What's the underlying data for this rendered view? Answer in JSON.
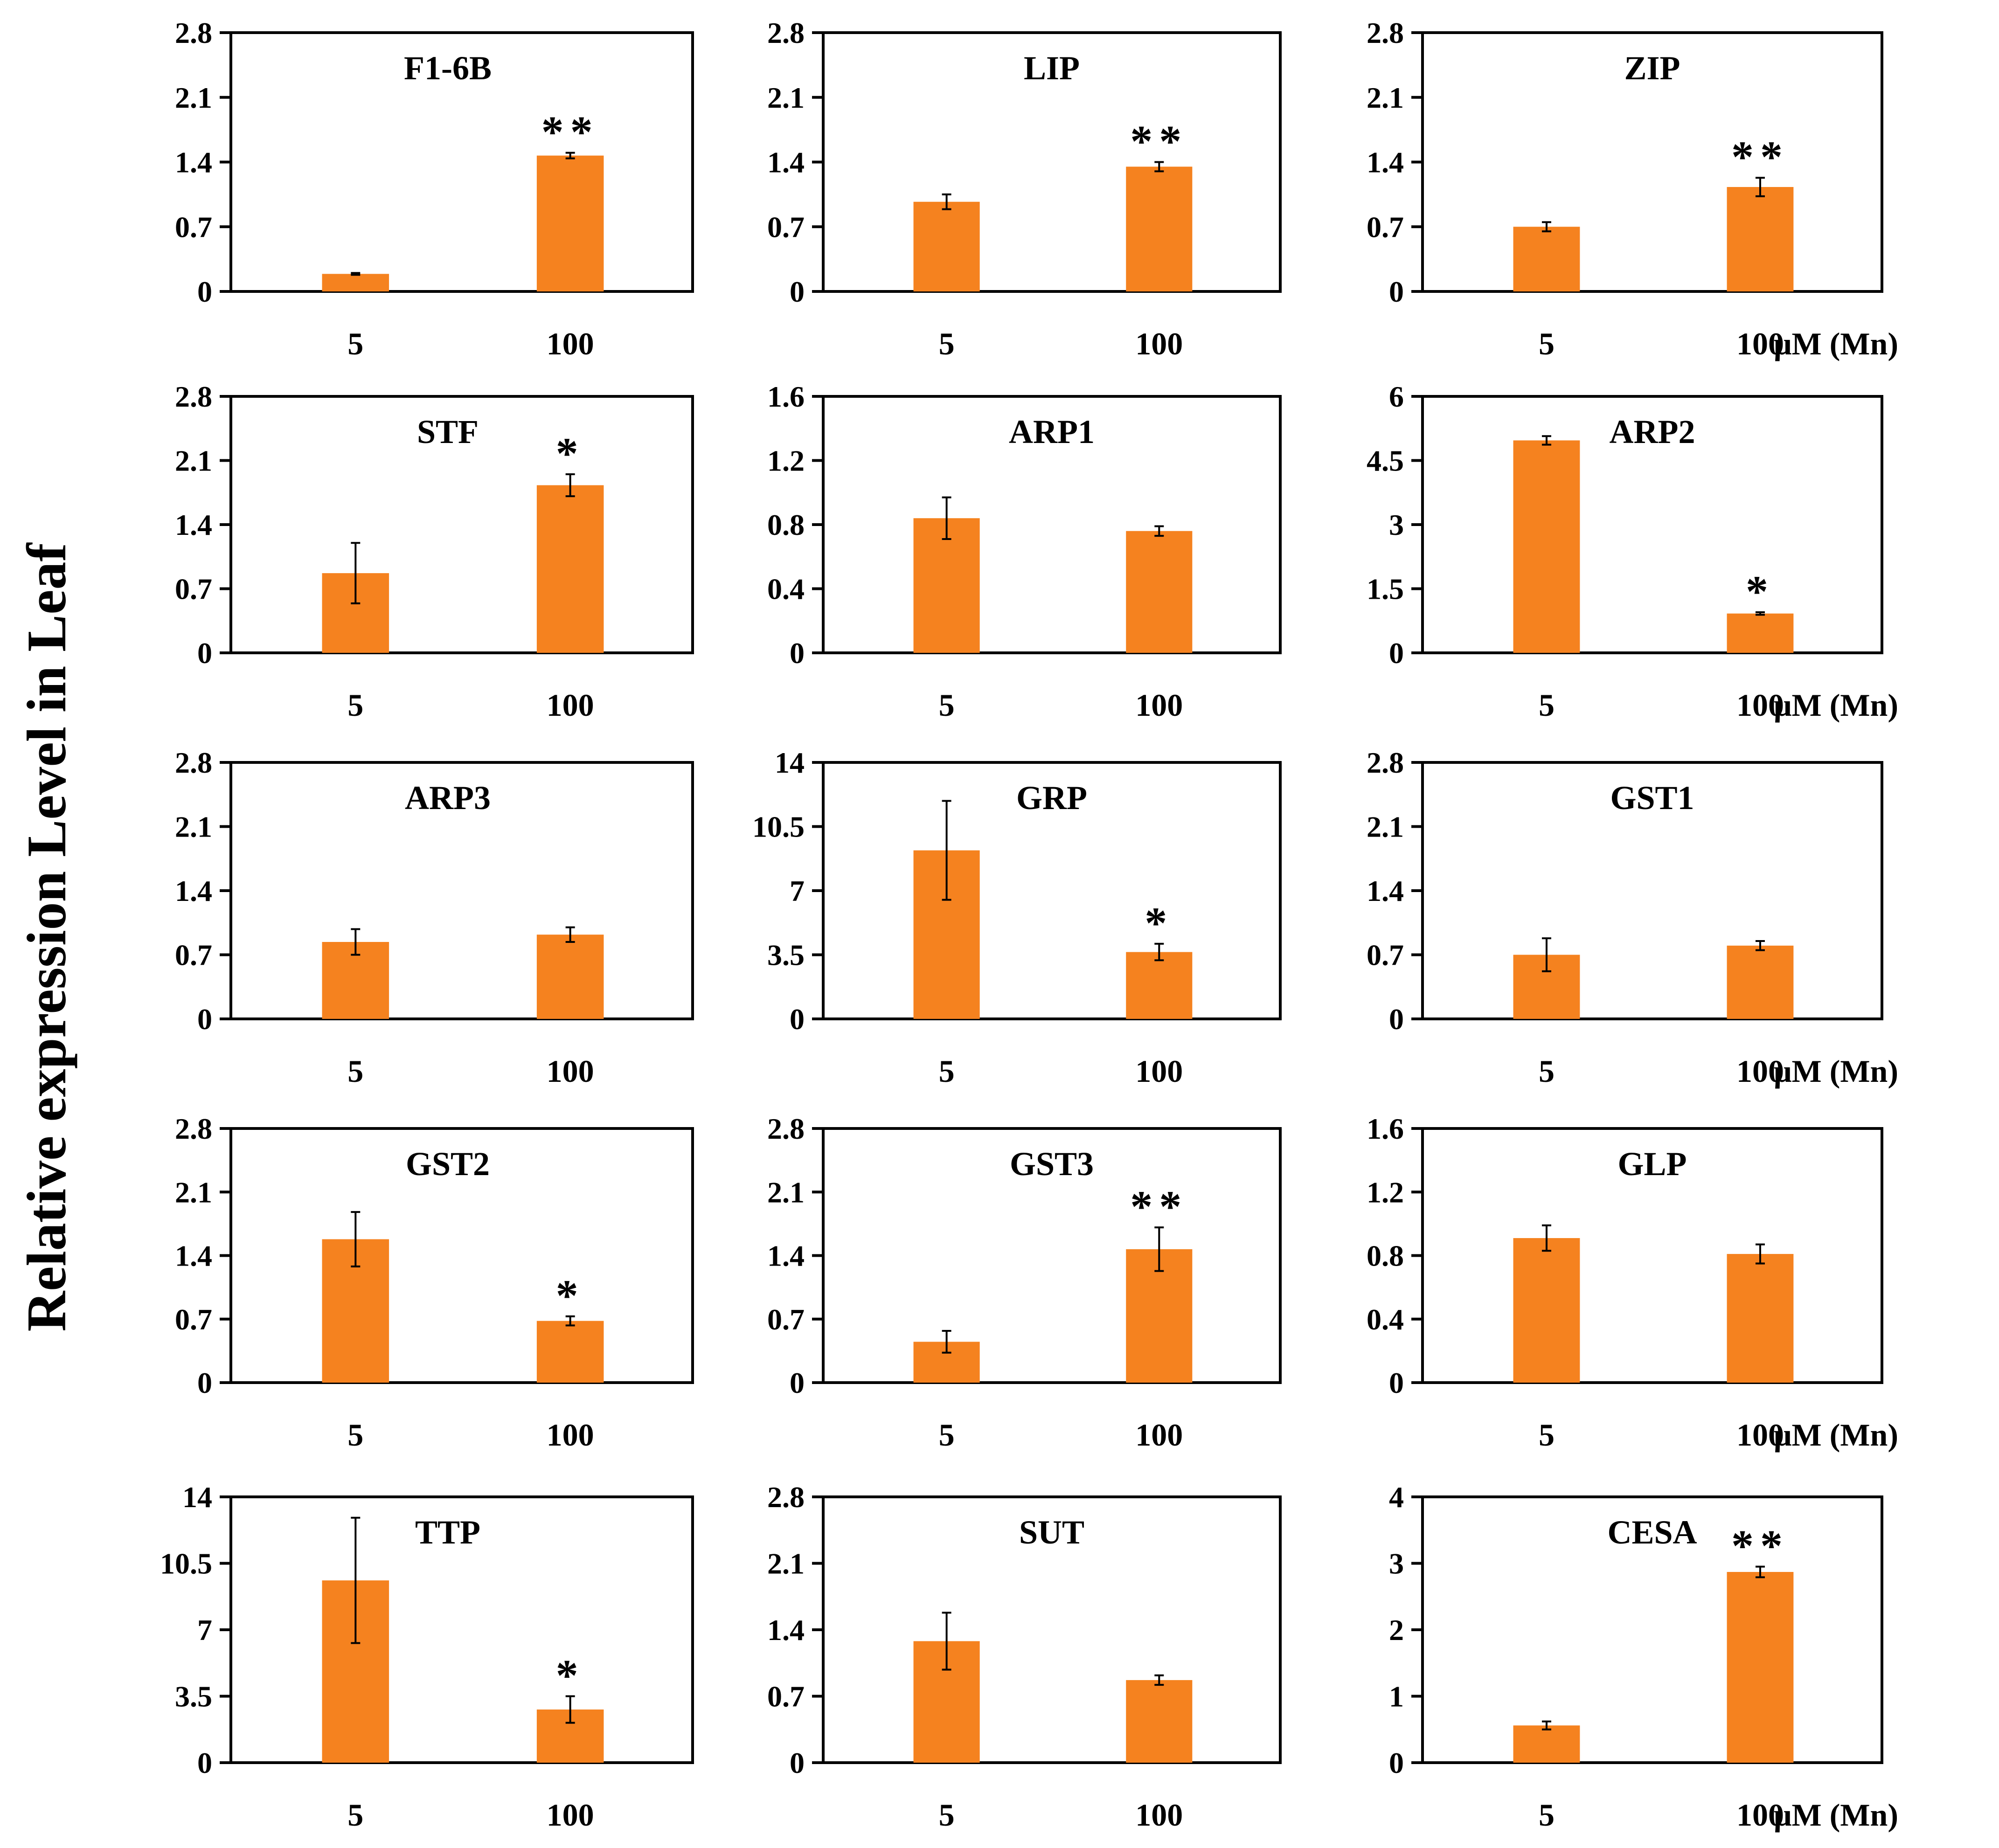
{
  "figure": {
    "ylabel": "Relative expression Level in Leaf",
    "unit_label": "μM (Mn)",
    "bar_color": "#f5821f",
    "axis_color": "#000000"
  },
  "chart_data": [
    {
      "type": "bar",
      "title": "F1-6B",
      "categories": [
        "5",
        "100"
      ],
      "values": [
        0.19,
        1.47
      ],
      "errors": [
        0.01,
        0.03
      ],
      "sig": [
        "",
        "**"
      ],
      "ylim": [
        0,
        2.8
      ],
      "yticks": [
        "0",
        "0.7",
        "1.4",
        "2.1",
        "2.8"
      ],
      "unit_label": false
    },
    {
      "type": "bar",
      "title": "LIP",
      "categories": [
        "5",
        "100"
      ],
      "values": [
        0.97,
        1.35
      ],
      "errors": [
        0.08,
        0.05
      ],
      "sig": [
        "",
        "**"
      ],
      "ylim": [
        0,
        2.8
      ],
      "yticks": [
        "0",
        "0.7",
        "1.4",
        "2.1",
        "2.8"
      ],
      "unit_label": false
    },
    {
      "type": "bar",
      "title": "ZIP",
      "categories": [
        "5",
        "100"
      ],
      "values": [
        0.7,
        1.13
      ],
      "errors": [
        0.05,
        0.1
      ],
      "sig": [
        "",
        "**"
      ],
      "ylim": [
        0,
        2.8
      ],
      "yticks": [
        "0",
        "0.7",
        "1.4",
        "2.1",
        "2.8"
      ],
      "unit_label": true
    },
    {
      "type": "bar",
      "title": "STF",
      "categories": [
        "5",
        "100"
      ],
      "values": [
        0.87,
        1.83
      ],
      "errors": [
        0.33,
        0.12
      ],
      "sig": [
        "",
        "*"
      ],
      "ylim": [
        0,
        2.8
      ],
      "yticks": [
        "0",
        "0.7",
        "1.4",
        "2.1",
        "2.8"
      ],
      "unit_label": false
    },
    {
      "type": "bar",
      "title": "ARP1",
      "categories": [
        "5",
        "100"
      ],
      "values": [
        0.84,
        0.76
      ],
      "errors": [
        0.13,
        0.03
      ],
      "sig": [
        "",
        ""
      ],
      "ylim": [
        0,
        1.6
      ],
      "yticks": [
        "0",
        "0.4",
        "0.8",
        "1.2",
        "1.6"
      ],
      "unit_label": false
    },
    {
      "type": "bar",
      "title": "ARP2",
      "categories": [
        "5",
        "100"
      ],
      "values": [
        4.97,
        0.92
      ],
      "errors": [
        0.1,
        0.03
      ],
      "sig": [
        "",
        "*"
      ],
      "ylim": [
        0,
        6
      ],
      "yticks": [
        "0",
        "1.5",
        "3",
        "4.5",
        "6"
      ],
      "unit_label": true
    },
    {
      "type": "bar",
      "title": "ARP3",
      "categories": [
        "5",
        "100"
      ],
      "values": [
        0.84,
        0.92
      ],
      "errors": [
        0.14,
        0.08
      ],
      "sig": [
        "",
        ""
      ],
      "ylim": [
        0,
        2.8
      ],
      "yticks": [
        "0",
        "0.7",
        "1.4",
        "2.1",
        "2.8"
      ],
      "unit_label": false
    },
    {
      "type": "bar",
      "title": "GRP",
      "categories": [
        "5",
        "100"
      ],
      "values": [
        9.2,
        3.65
      ],
      "errors": [
        2.7,
        0.45
      ],
      "sig": [
        "",
        "*"
      ],
      "ylim": [
        0,
        14
      ],
      "yticks": [
        "0",
        "3.5",
        "7",
        "10.5",
        "14"
      ],
      "unit_label": false
    },
    {
      "type": "bar",
      "title": "GST1",
      "categories": [
        "5",
        "100"
      ],
      "values": [
        0.7,
        0.8
      ],
      "errors": [
        0.18,
        0.05
      ],
      "sig": [
        "",
        ""
      ],
      "ylim": [
        0,
        2.8
      ],
      "yticks": [
        "0",
        "0.7",
        "1.4",
        "2.1",
        "2.8"
      ],
      "unit_label": true
    },
    {
      "type": "bar",
      "title": "GST2",
      "categories": [
        "5",
        "100"
      ],
      "values": [
        1.58,
        0.68
      ],
      "errors": [
        0.3,
        0.05
      ],
      "sig": [
        "",
        "*"
      ],
      "ylim": [
        0,
        2.8
      ],
      "yticks": [
        "0",
        "0.7",
        "1.4",
        "2.1",
        "2.8"
      ],
      "unit_label": false
    },
    {
      "type": "bar",
      "title": "GST3",
      "categories": [
        "5",
        "100"
      ],
      "values": [
        0.45,
        1.47
      ],
      "errors": [
        0.12,
        0.24
      ],
      "sig": [
        "",
        "**"
      ],
      "ylim": [
        0,
        2.8
      ],
      "yticks": [
        "0",
        "0.7",
        "1.4",
        "2.1",
        "2.8"
      ],
      "unit_label": false
    },
    {
      "type": "bar",
      "title": "GLP",
      "categories": [
        "5",
        "100"
      ],
      "values": [
        0.91,
        0.81
      ],
      "errors": [
        0.08,
        0.06
      ],
      "sig": [
        "",
        ""
      ],
      "ylim": [
        0,
        1.6
      ],
      "yticks": [
        "0",
        "0.4",
        "0.8",
        "1.2",
        "1.6"
      ],
      "unit_label": true
    },
    {
      "type": "bar",
      "title": "TTP",
      "categories": [
        "5",
        "100"
      ],
      "values": [
        9.6,
        2.8
      ],
      "errors": [
        3.3,
        0.7
      ],
      "sig": [
        "",
        "*"
      ],
      "ylim": [
        0,
        14
      ],
      "yticks": [
        "0",
        "3.5",
        "7",
        "10.5",
        "14"
      ],
      "unit_label": false
    },
    {
      "type": "bar",
      "title": "SUT",
      "categories": [
        "5",
        "100"
      ],
      "values": [
        1.28,
        0.87
      ],
      "errors": [
        0.3,
        0.05
      ],
      "sig": [
        "",
        ""
      ],
      "ylim": [
        0,
        2.8
      ],
      "yticks": [
        "0",
        "0.7",
        "1.4",
        "2.1",
        "2.8"
      ],
      "unit_label": false
    },
    {
      "type": "bar",
      "title": "CESA",
      "categories": [
        "5",
        "100"
      ],
      "values": [
        0.56,
        2.87
      ],
      "errors": [
        0.06,
        0.08
      ],
      "sig": [
        "",
        "**"
      ],
      "ylim": [
        0,
        4
      ],
      "yticks": [
        "0",
        "1",
        "2",
        "3",
        "4"
      ],
      "unit_label": true
    }
  ]
}
